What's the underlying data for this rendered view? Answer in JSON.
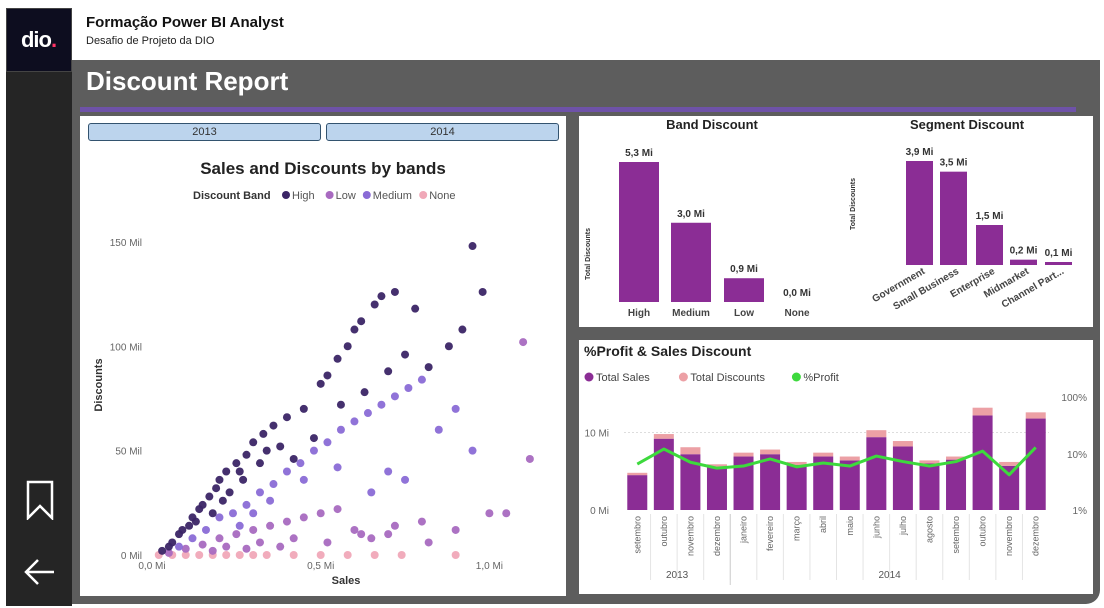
{
  "app": {
    "logo_text": "dio",
    "title": "Formação Power BI Analyst",
    "subtitle": "Desafio de Projeto da DIO"
  },
  "report": {
    "title": "Discount Report"
  },
  "slicers": [
    "2013",
    "2014"
  ],
  "colors": {
    "purple": "#8b2d95",
    "salmon": "#eca0a5",
    "green": "#3dd93d",
    "high": "#3b2566",
    "low": "#a86ac0",
    "medium": "#8a6bd6",
    "none": "#f0a8b8"
  },
  "chart_data": [
    {
      "type": "scatter",
      "title": "Sales and Discounts by bands",
      "legend_title": "Discount Band",
      "xlabel": "Sales",
      "ylabel": "Discounts",
      "x_ticks": [
        "0,0 Mi",
        "0,5 Mi",
        "1,0 Mi"
      ],
      "x_tick_values": [
        0,
        0.5,
        1.0
      ],
      "y_ticks": [
        "0 Mil",
        "50 Mil",
        "100 Mil",
        "150 Mil"
      ],
      "y_tick_values": [
        0,
        50,
        100,
        150
      ],
      "xlim": [
        0,
        1.15
      ],
      "ylim": [
        0,
        160
      ],
      "series": [
        {
          "name": "High",
          "points": [
            [
              0.03,
              2
            ],
            [
              0.06,
              6
            ],
            [
              0.09,
              12
            ],
            [
              0.12,
              18
            ],
            [
              0.14,
              22
            ],
            [
              0.17,
              28
            ],
            [
              0.2,
              36
            ],
            [
              0.22,
              40
            ],
            [
              0.25,
              44
            ],
            [
              0.28,
              48
            ],
            [
              0.3,
              54
            ],
            [
              0.33,
              58
            ],
            [
              0.36,
              62
            ],
            [
              0.4,
              66
            ],
            [
              0.45,
              70
            ],
            [
              0.5,
              82
            ],
            [
              0.52,
              86
            ],
            [
              0.55,
              94
            ],
            [
              0.58,
              100
            ],
            [
              0.6,
              108
            ],
            [
              0.62,
              112
            ],
            [
              0.66,
              120
            ],
            [
              0.68,
              124
            ],
            [
              0.72,
              126
            ],
            [
              0.78,
              118
            ],
            [
              0.82,
              90
            ],
            [
              0.88,
              100
            ],
            [
              0.92,
              108
            ],
            [
              0.95,
              148
            ],
            [
              0.98,
              126
            ],
            [
              0.08,
              10
            ],
            [
              0.11,
              14
            ],
            [
              0.15,
              24
            ],
            [
              0.19,
              32
            ],
            [
              0.23,
              30
            ],
            [
              0.27,
              36
            ],
            [
              0.32,
              44
            ],
            [
              0.38,
              52
            ],
            [
              0.42,
              46
            ],
            [
              0.48,
              56
            ],
            [
              0.56,
              72
            ],
            [
              0.63,
              78
            ],
            [
              0.7,
              88
            ],
            [
              0.75,
              96
            ],
            [
              0.05,
              4
            ],
            [
              0.13,
              16
            ],
            [
              0.18,
              20
            ],
            [
              0.21,
              26
            ],
            [
              0.26,
              40
            ],
            [
              0.34,
              50
            ]
          ]
        },
        {
          "name": "Low",
          "points": [
            [
              0.05,
              1
            ],
            [
              0.1,
              3
            ],
            [
              0.15,
              5
            ],
            [
              0.2,
              8
            ],
            [
              0.25,
              10
            ],
            [
              0.3,
              12
            ],
            [
              0.35,
              14
            ],
            [
              0.4,
              16
            ],
            [
              0.45,
              18
            ],
            [
              0.5,
              20
            ],
            [
              0.55,
              22
            ],
            [
              0.6,
              12
            ],
            [
              0.65,
              8
            ],
            [
              0.7,
              10
            ],
            [
              0.8,
              16
            ],
            [
              0.9,
              12
            ],
            [
              1.0,
              20
            ],
            [
              1.05,
              20
            ],
            [
              1.12,
              46
            ],
            [
              1.1,
              102
            ],
            [
              0.22,
              4
            ],
            [
              0.32,
              6
            ],
            [
              0.42,
              8
            ],
            [
              0.52,
              6
            ],
            [
              0.62,
              10
            ],
            [
              0.72,
              14
            ],
            [
              0.82,
              6
            ],
            [
              0.18,
              2
            ],
            [
              0.28,
              3
            ],
            [
              0.38,
              4
            ]
          ]
        },
        {
          "name": "Medium",
          "points": [
            [
              0.08,
              4
            ],
            [
              0.12,
              8
            ],
            [
              0.16,
              12
            ],
            [
              0.2,
              18
            ],
            [
              0.24,
              20
            ],
            [
              0.28,
              24
            ],
            [
              0.32,
              30
            ],
            [
              0.36,
              34
            ],
            [
              0.4,
              40
            ],
            [
              0.44,
              44
            ],
            [
              0.48,
              50
            ],
            [
              0.52,
              54
            ],
            [
              0.56,
              60
            ],
            [
              0.6,
              64
            ],
            [
              0.64,
              68
            ],
            [
              0.68,
              72
            ],
            [
              0.72,
              76
            ],
            [
              0.76,
              80
            ],
            [
              0.8,
              84
            ],
            [
              0.85,
              60
            ],
            [
              0.9,
              70
            ],
            [
              0.95,
              50
            ],
            [
              0.3,
              20
            ],
            [
              0.35,
              26
            ],
            [
              0.45,
              36
            ],
            [
              0.55,
              42
            ],
            [
              0.65,
              30
            ],
            [
              0.7,
              40
            ],
            [
              0.75,
              36
            ],
            [
              0.26,
              14
            ]
          ]
        },
        {
          "name": "None",
          "points": [
            [
              0.02,
              0
            ],
            [
              0.06,
              0
            ],
            [
              0.1,
              0
            ],
            [
              0.14,
              0
            ],
            [
              0.18,
              0
            ],
            [
              0.22,
              0
            ],
            [
              0.26,
              0
            ],
            [
              0.3,
              0
            ],
            [
              0.34,
              0
            ],
            [
              0.42,
              0
            ],
            [
              0.5,
              0
            ],
            [
              0.58,
              0
            ],
            [
              0.66,
              0
            ],
            [
              0.74,
              0
            ],
            [
              0.9,
              0
            ]
          ]
        }
      ]
    },
    {
      "type": "bar",
      "title": "Band Discount",
      "ylabel": "Total Discounts",
      "categories": [
        "High",
        "Medium",
        "Low",
        "None"
      ],
      "values": [
        5.3,
        3.0,
        0.9,
        0.0
      ],
      "labels": [
        "5,3 Mi",
        "3,0 Mi",
        "0,9 Mi",
        "0,0 Mi"
      ]
    },
    {
      "type": "bar",
      "title": "Segment Discount",
      "ylabel": "Total Discounts",
      "categories": [
        "Government",
        "Small Business",
        "Enterprise",
        "Midmarket",
        "Channel Part..."
      ],
      "values": [
        3.9,
        3.5,
        1.5,
        0.2,
        0.1
      ],
      "labels": [
        "3,9 Mi",
        "3,5 Mi",
        "1,5 Mi",
        "0,2 Mi",
        "0,1 Mi"
      ]
    },
    {
      "type": "bar",
      "title": "%Profit & Sales Discount",
      "legend": [
        "Total  Sales",
        "Total Discounts",
        "%Profit"
      ],
      "y_ticks": [
        "0 Mi",
        "10 Mi"
      ],
      "y_tick_values": [
        0,
        10
      ],
      "y2_ticks": [
        "1%",
        "10%",
        "100%"
      ],
      "ylim": [
        0,
        16
      ],
      "groups": [
        "2013",
        "2014"
      ],
      "categories": [
        "setembro",
        "outubro",
        "novembro",
        "dezembro",
        "janeiro",
        "fevereiro",
        "março",
        "abril",
        "maio",
        "junho",
        "julho",
        "agosto",
        "setembro",
        "outubro",
        "novembro",
        "dezembro"
      ],
      "category_group": [
        "2013",
        "2013",
        "2013",
        "2013",
        "2014",
        "2014",
        "2014",
        "2014",
        "2014",
        "2014",
        "2014",
        "2014",
        "2014",
        "2014",
        "2014",
        "2014"
      ],
      "series": [
        {
          "name": "Total  Sales",
          "values": [
            4.5,
            9.2,
            7.2,
            5.5,
            6.9,
            7.2,
            5.8,
            6.9,
            6.4,
            9.4,
            8.2,
            6.0,
            6.5,
            12.2,
            5.7,
            11.8
          ]
        },
        {
          "name": "Total Discounts",
          "values": [
            0.3,
            0.6,
            0.9,
            0.4,
            0.5,
            0.6,
            0.4,
            0.5,
            0.5,
            0.9,
            0.7,
            0.4,
            0.4,
            1.0,
            0.5,
            0.8
          ]
        },
        {
          "name": "%Profit",
          "values": [
            6.5,
            12,
            7,
            5.5,
            6,
            8,
            5.8,
            6.8,
            6,
            9,
            7.2,
            6,
            7.2,
            11,
            4.2,
            12.8
          ]
        }
      ]
    }
  ]
}
